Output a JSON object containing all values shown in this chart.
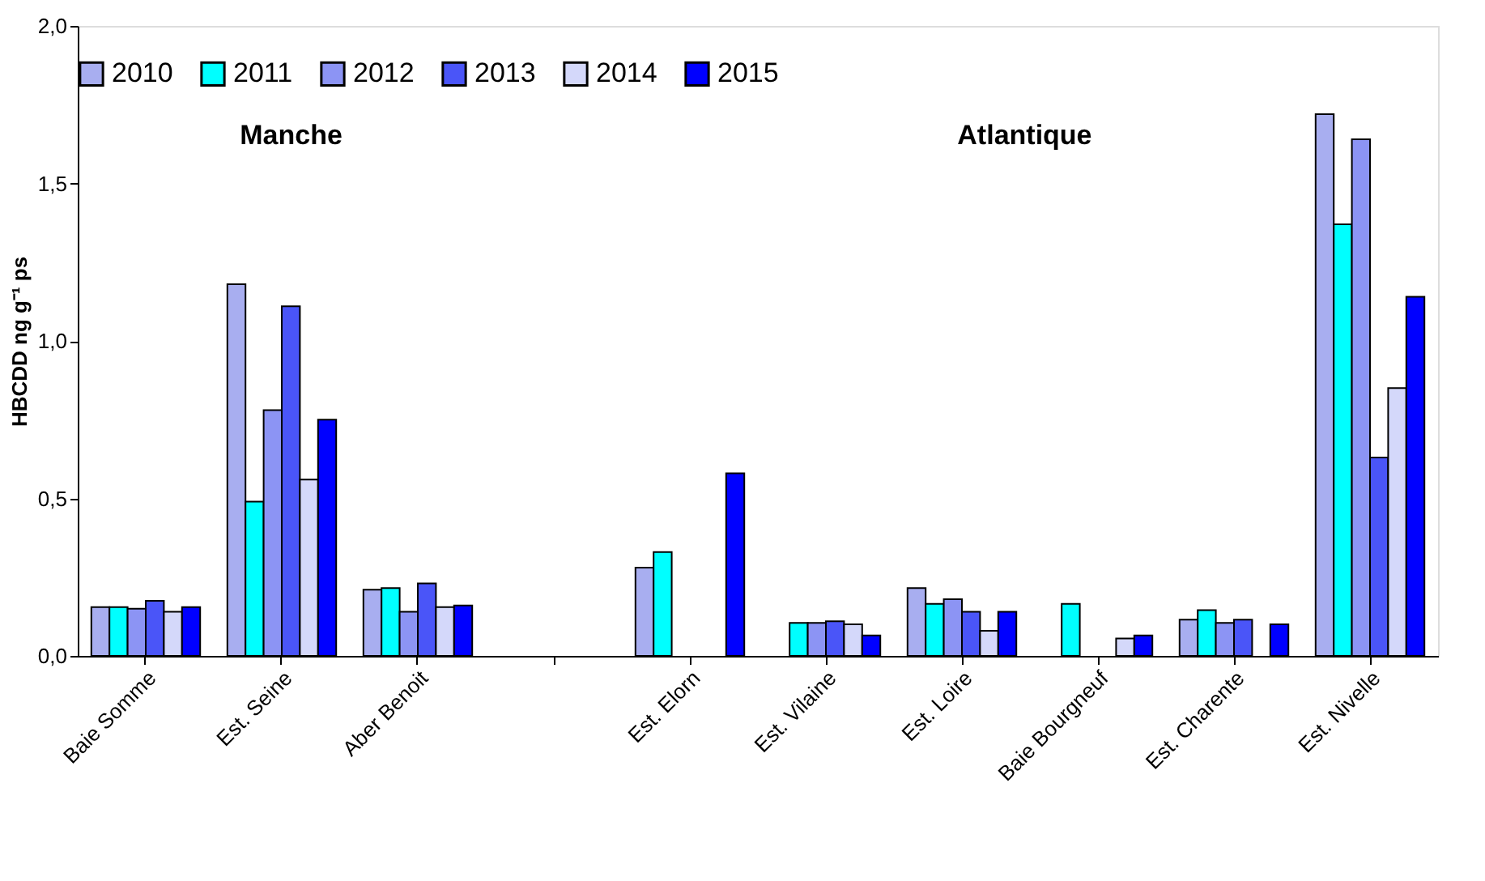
{
  "chart_data": {
    "type": "bar",
    "ylabel": "HBCDD ng g⁻¹ ps",
    "categories": [
      "Baie Somme",
      "Est. Seine",
      "Aber Benoit",
      null,
      "Est. Elorn",
      "Est. Vilaine",
      "Est. Loire",
      "Baie Bourgneuf",
      "Est. Charente",
      "Est. Nivelle"
    ],
    "series": [
      {
        "name": "2010",
        "color": "#a8aef0",
        "values": [
          0.155,
          1.18,
          0.21,
          null,
          0.28,
          null,
          0.215,
          null,
          0.115,
          1.72
        ]
      },
      {
        "name": "2011",
        "color": "#00ffff",
        "values": [
          0.155,
          0.49,
          0.215,
          null,
          0.33,
          0.105,
          0.165,
          0.165,
          0.145,
          1.37
        ]
      },
      {
        "name": "2012",
        "color": "#8c94f4",
        "values": [
          0.15,
          0.78,
          0.14,
          null,
          null,
          0.105,
          0.18,
          null,
          0.105,
          1.64
        ]
      },
      {
        "name": "2013",
        "color": "#4a55f8",
        "values": [
          0.175,
          1.11,
          0.23,
          null,
          null,
          0.11,
          0.14,
          null,
          0.115,
          0.63
        ]
      },
      {
        "name": "2014",
        "color": "#d4d8fa",
        "values": [
          0.14,
          0.56,
          0.155,
          null,
          null,
          0.1,
          0.08,
          0.055,
          null,
          0.85
        ]
      },
      {
        "name": "2015",
        "color": "#0000ff",
        "values": [
          0.155,
          0.75,
          0.16,
          null,
          0.58,
          0.065,
          0.14,
          0.065,
          0.1,
          1.14
        ]
      }
    ],
    "ylim": [
      0,
      2.0
    ],
    "yticks": [
      {
        "value": 0,
        "label": "0,0"
      },
      {
        "value": 0.5,
        "label": "0,5"
      },
      {
        "value": 1.0,
        "label": "1,0"
      },
      {
        "value": 1.5,
        "label": "1,5"
      },
      {
        "value": 2.0,
        "label": "2,0"
      }
    ],
    "annotations": [
      "Manche",
      "Atlantique"
    ],
    "legend": "top",
    "grid": false
  }
}
